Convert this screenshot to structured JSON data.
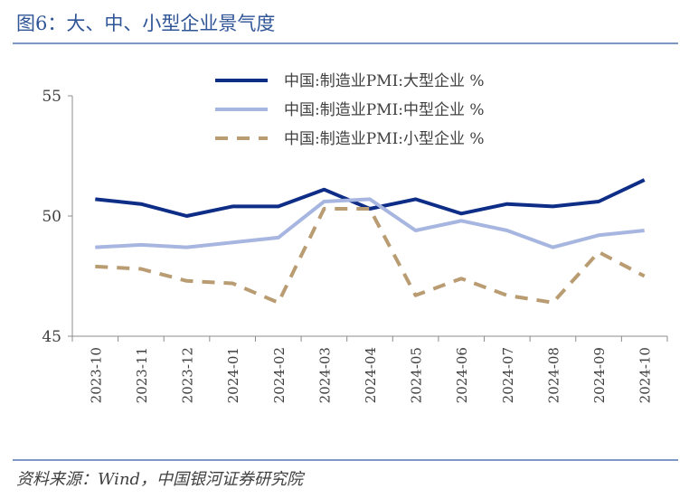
{
  "figure": {
    "title": "图6：大、中、小型企业景气度",
    "source": "资料来源：Wind，中国银河证券研究院"
  },
  "chart_data": {
    "type": "line",
    "title": "",
    "xlabel": "",
    "ylabel": "",
    "ylim": [
      45,
      55
    ],
    "yticks": [
      "45",
      "50",
      "55"
    ],
    "grid": false,
    "legend_position": "top",
    "x": [
      "2023-10",
      "2023-11",
      "2023-12",
      "2024-01",
      "2024-02",
      "2024-03",
      "2024-04",
      "2024-05",
      "2024-06",
      "2024-07",
      "2024-08",
      "2024-09",
      "2024-10"
    ],
    "series": [
      {
        "name": "中国:制造业PMI:大型企业 %",
        "color": "#0d2d87",
        "style": "solid",
        "values": [
          50.7,
          50.5,
          50.0,
          50.4,
          50.4,
          51.1,
          50.3,
          50.7,
          50.1,
          50.5,
          50.4,
          50.6,
          51.5
        ]
      },
      {
        "name": "中国:制造业PMI:中型企业 %",
        "color": "#a7b6e0",
        "style": "solid",
        "values": [
          48.7,
          48.8,
          48.7,
          48.9,
          49.1,
          50.6,
          50.7,
          49.4,
          49.8,
          49.4,
          48.7,
          49.2,
          49.4
        ]
      },
      {
        "name": "中国:制造业PMI:小型企业 %",
        "color": "#b99c72",
        "style": "dashed",
        "values": [
          47.9,
          47.8,
          47.3,
          47.2,
          46.4,
          50.3,
          50.3,
          46.7,
          47.4,
          46.7,
          46.4,
          48.5,
          47.5
        ]
      }
    ]
  }
}
